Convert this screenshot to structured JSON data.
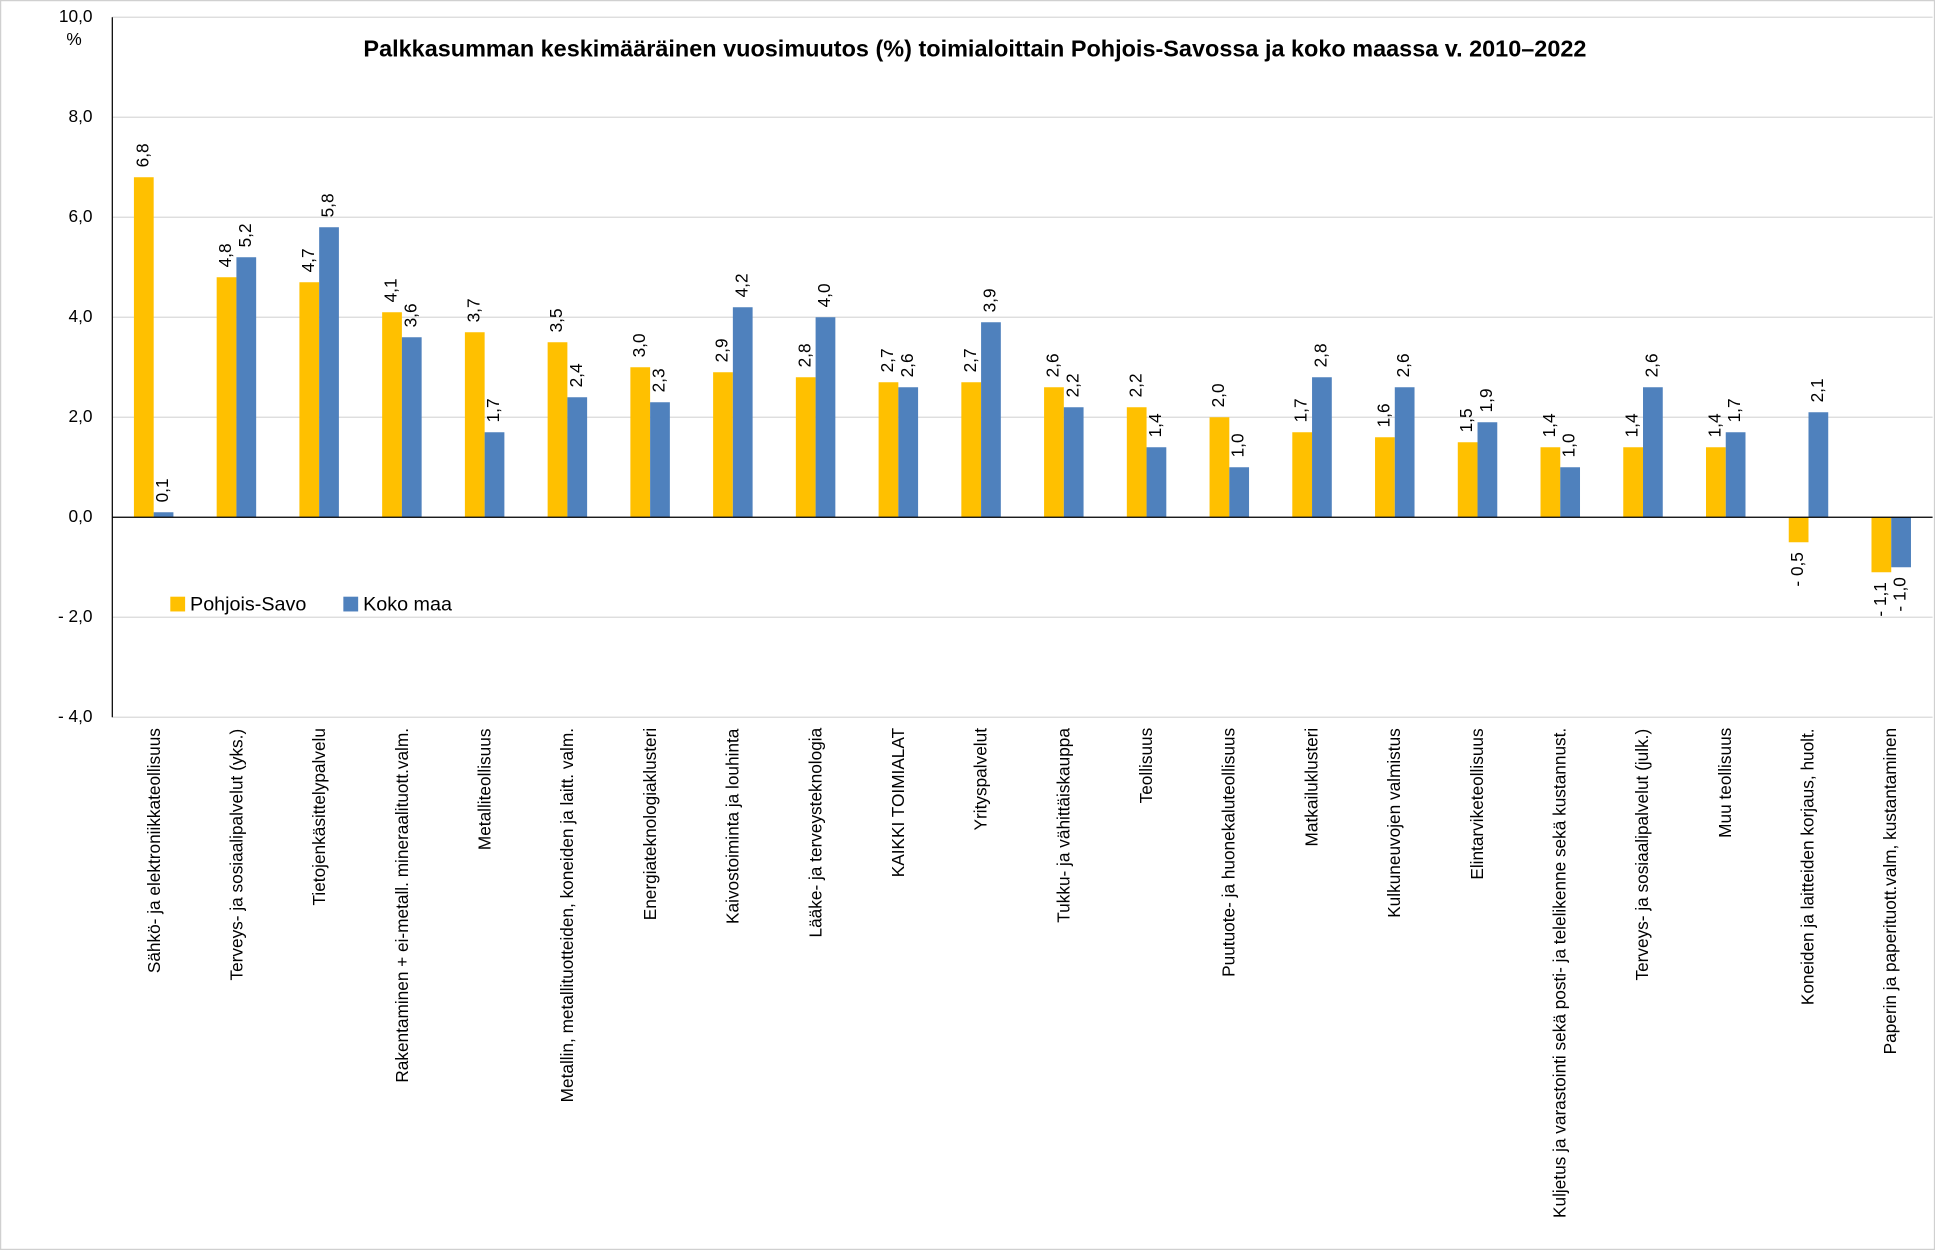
{
  "chart_data": {
    "type": "bar",
    "title": "Palkkasumman keskimääräinen vuosimuutos (%) toimialoittain Pohjois-Savossa ja koko maassa v. 2010–2022",
    "y_unit": "%",
    "categories": [
      "Sähkö- ja elektroniikkateollisuus",
      "Terveys- ja sosiaalipalvelut (yks.)",
      "Tietojenkäsittelypalvelu",
      "Rakentaminen + ei-metall. mineraalituott.valm.",
      "Metalliteollisuus",
      "Metallin, metallituotteiden, koneiden ja laitt. valm.",
      "Energiateknologiaklusteri",
      "Kaivostoiminta ja louhinta",
      "Lääke- ja terveysteknologia",
      "KAIKKI TOIMIALAT",
      "Yrityspalvelut",
      "Tukku- ja vähittäiskauppa",
      "Teollisuus",
      "Puutuote- ja huonekaluteollisuus",
      "Matkailuklusteri",
      "Kulkuneuvojen valmistus",
      "Elintarviketeollisuus",
      "Kuljetus ja varastointi sekä posti- ja telelikenne sekä kustannust.",
      "Terveys- ja sosiaalipalvelut (julk.)",
      "Muu teollisuus",
      "Koneiden ja laitteiden korjaus, huolt.",
      "Paperin ja paperituott.valm, kustantaminen"
    ],
    "series": [
      {
        "name": "Pohjois-Savo",
        "color": "#ffc000",
        "values": [
          6.8,
          4.8,
          4.7,
          4.1,
          3.7,
          3.5,
          3.0,
          2.9,
          2.8,
          2.7,
          2.7,
          2.6,
          2.2,
          2.0,
          1.7,
          1.6,
          1.5,
          1.4,
          1.4,
          1.4,
          -0.5,
          -1.1
        ],
        "value_labels": [
          "6,8",
          "4,8",
          "4,7",
          "4,1",
          "3,7",
          "3,5",
          "3,0",
          "2,9",
          "2,8",
          "2,7",
          "2,7",
          "2,6",
          "2,2",
          "2,0",
          "1,7",
          "1,6",
          "1,5",
          "1,4",
          "1,4",
          "1,4",
          "- 0,5",
          "- 1,1"
        ]
      },
      {
        "name": "Koko maa",
        "color": "#4f81bd",
        "values": [
          0.1,
          5.2,
          5.8,
          3.6,
          1.7,
          2.4,
          2.3,
          4.2,
          4.0,
          2.6,
          3.9,
          2.2,
          1.4,
          1.0,
          2.8,
          2.6,
          1.9,
          1.0,
          2.6,
          1.7,
          2.1,
          -1.0
        ],
        "value_labels": [
          "0,1",
          "5,2",
          "5,8",
          "3,6",
          "1,7",
          "2,4",
          "2,3",
          "4,2",
          "4,0",
          "2,6",
          "3,9",
          "2,2",
          "1,4",
          "1,0",
          "2,8",
          "2,6",
          "1,9",
          "1,0",
          "2,6",
          "1,7",
          "2,1",
          "- 1,0"
        ]
      }
    ],
    "ylim": [
      -4,
      10
    ],
    "yticks": [
      {
        "value": -4,
        "label": "- 4,0"
      },
      {
        "value": -2,
        "label": "- 2,0"
      },
      {
        "value": 0,
        "label": "0,0"
      },
      {
        "value": 2,
        "label": "2,0"
      },
      {
        "value": 4,
        "label": "4,0"
      },
      {
        "value": 6,
        "label": "6,0"
      },
      {
        "value": 8,
        "label": "8,0"
      },
      {
        "value": 10,
        "label": "10,0"
      }
    ],
    "grid": true,
    "legend": "inside-left"
  }
}
